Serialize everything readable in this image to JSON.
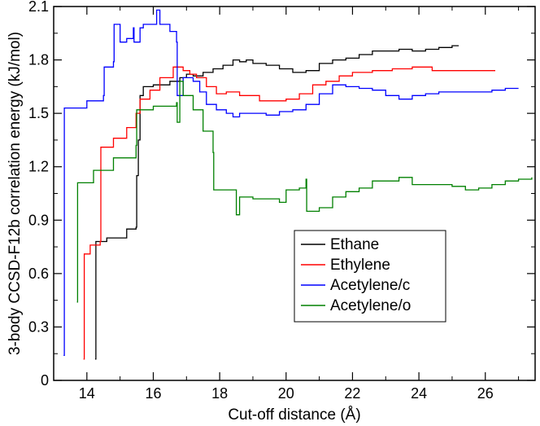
{
  "chart_data": {
    "type": "line",
    "title": "",
    "xlabel": "Cut-off distance (Å)",
    "ylabel": "3-body CCSD-F12b correlation energy (kJ/mol)",
    "xlim": [
      13,
      27.5
    ],
    "ylim": [
      0,
      2.1
    ],
    "x_major_ticks": [
      14,
      16,
      18,
      20,
      22,
      24,
      26
    ],
    "x_tick_labels": [
      "14",
      "16",
      "18",
      "20",
      "22",
      "24",
      "26"
    ],
    "y_major_ticks": [
      0,
      0.3,
      0.6,
      0.9,
      1.2,
      1.5,
      1.8,
      2.1
    ],
    "y_tick_labels": [
      "0",
      "0.3",
      "0.6",
      "0.9",
      "1.2",
      "1.5",
      "1.8",
      "2.1"
    ],
    "grid": false,
    "legend_position": "lower-right",
    "series": [
      {
        "name": "Ethane",
        "color": "#000000",
        "points": [
          [
            14.25,
            0.12
          ],
          [
            14.27,
            0.78
          ],
          [
            14.4,
            0.78
          ],
          [
            14.6,
            0.8
          ],
          [
            15.2,
            0.85
          ],
          [
            15.48,
            0.86
          ],
          [
            15.5,
            1.15
          ],
          [
            15.55,
            1.35
          ],
          [
            15.6,
            1.6
          ],
          [
            15.65,
            1.6
          ],
          [
            15.7,
            1.65
          ],
          [
            16.0,
            1.66
          ],
          [
            16.5,
            1.68
          ],
          [
            16.8,
            1.7
          ],
          [
            17.0,
            1.72
          ],
          [
            17.2,
            1.71
          ],
          [
            17.5,
            1.73
          ],
          [
            17.8,
            1.75
          ],
          [
            18.1,
            1.77
          ],
          [
            18.4,
            1.8
          ],
          [
            18.6,
            1.79
          ],
          [
            18.8,
            1.8
          ],
          [
            19.0,
            1.78
          ],
          [
            19.4,
            1.77
          ],
          [
            19.8,
            1.75
          ],
          [
            20.2,
            1.73
          ],
          [
            20.6,
            1.74
          ],
          [
            20.8,
            1.74
          ],
          [
            21.0,
            1.78
          ],
          [
            21.4,
            1.8
          ],
          [
            21.8,
            1.81
          ],
          [
            22.2,
            1.83
          ],
          [
            22.6,
            1.85
          ],
          [
            23.0,
            1.85
          ],
          [
            23.4,
            1.86
          ],
          [
            23.8,
            1.85
          ],
          [
            24.2,
            1.86
          ],
          [
            24.6,
            1.87
          ],
          [
            25.0,
            1.88
          ],
          [
            25.2,
            1.88
          ]
        ]
      },
      {
        "name": "Ethylene",
        "color": "#ff0000",
        "points": [
          [
            13.9,
            0.12
          ],
          [
            13.92,
            0.71
          ],
          [
            14.1,
            0.76
          ],
          [
            14.4,
            0.78
          ],
          [
            14.42,
            1.31
          ],
          [
            14.8,
            1.36
          ],
          [
            15.2,
            1.42
          ],
          [
            15.48,
            1.5
          ],
          [
            15.6,
            1.58
          ],
          [
            15.9,
            1.63
          ],
          [
            16.2,
            1.7
          ],
          [
            16.6,
            1.76
          ],
          [
            16.9,
            1.74
          ],
          [
            17.1,
            1.72
          ],
          [
            17.3,
            1.7
          ],
          [
            17.6,
            1.65
          ],
          [
            17.9,
            1.61
          ],
          [
            18.2,
            1.62
          ],
          [
            18.6,
            1.6
          ],
          [
            19.0,
            1.6
          ],
          [
            19.2,
            1.57
          ],
          [
            19.6,
            1.57
          ],
          [
            20.0,
            1.58
          ],
          [
            20.4,
            1.61
          ],
          [
            20.8,
            1.66
          ],
          [
            21.2,
            1.68
          ],
          [
            21.6,
            1.71
          ],
          [
            22.0,
            1.73
          ],
          [
            22.6,
            1.74
          ],
          [
            23.2,
            1.75
          ],
          [
            23.8,
            1.76
          ],
          [
            24.4,
            1.74
          ],
          [
            25.0,
            1.74
          ],
          [
            25.6,
            1.74
          ],
          [
            26.0,
            1.74
          ],
          [
            26.3,
            1.74
          ]
        ]
      },
      {
        "name": "Acetylene/c",
        "color": "#0000ff",
        "points": [
          [
            13.3,
            0.14
          ],
          [
            13.32,
            1.53
          ],
          [
            14.0,
            1.57
          ],
          [
            14.5,
            1.6
          ],
          [
            14.52,
            1.76
          ],
          [
            14.8,
            1.79
          ],
          [
            14.82,
            2.0
          ],
          [
            15.0,
            1.9
          ],
          [
            15.2,
            1.92
          ],
          [
            15.4,
            1.98
          ],
          [
            15.42,
            1.9
          ],
          [
            15.6,
            1.98
          ],
          [
            15.7,
            2.0
          ],
          [
            16.1,
            2.08
          ],
          [
            16.2,
            2.0
          ],
          [
            16.5,
            1.96
          ],
          [
            16.7,
            1.9
          ],
          [
            16.72,
            1.6
          ],
          [
            16.9,
            1.7
          ],
          [
            17.2,
            1.68
          ],
          [
            17.4,
            1.62
          ],
          [
            17.6,
            1.55
          ],
          [
            17.9,
            1.52
          ],
          [
            18.2,
            1.5
          ],
          [
            18.4,
            1.48
          ],
          [
            18.6,
            1.5
          ],
          [
            19.0,
            1.5
          ],
          [
            19.4,
            1.49
          ],
          [
            19.8,
            1.51
          ],
          [
            20.2,
            1.52
          ],
          [
            20.6,
            1.55
          ],
          [
            21.0,
            1.61
          ],
          [
            21.4,
            1.66
          ],
          [
            21.8,
            1.65
          ],
          [
            22.2,
            1.64
          ],
          [
            22.6,
            1.63
          ],
          [
            23.0,
            1.6
          ],
          [
            23.4,
            1.58
          ],
          [
            23.8,
            1.6
          ],
          [
            24.2,
            1.61
          ],
          [
            24.6,
            1.62
          ],
          [
            25.0,
            1.62
          ],
          [
            25.6,
            1.62
          ],
          [
            26.2,
            1.63
          ],
          [
            26.6,
            1.64
          ],
          [
            27.0,
            1.64
          ]
        ]
      },
      {
        "name": "Acetylene/o",
        "color": "#008000",
        "points": [
          [
            13.7,
            0.44
          ],
          [
            13.72,
            1.11
          ],
          [
            14.2,
            1.18
          ],
          [
            14.8,
            1.25
          ],
          [
            15.48,
            1.32
          ],
          [
            15.5,
            1.52
          ],
          [
            16.0,
            1.54
          ],
          [
            16.7,
            1.56
          ],
          [
            16.72,
            1.45
          ],
          [
            16.8,
            1.68
          ],
          [
            16.9,
            1.6
          ],
          [
            17.2,
            1.52
          ],
          [
            17.5,
            1.4
          ],
          [
            17.8,
            1.28
          ],
          [
            17.82,
            1.07
          ],
          [
            18.2,
            1.07
          ],
          [
            18.5,
            0.93
          ],
          [
            18.6,
            1.03
          ],
          [
            19.0,
            1.02
          ],
          [
            19.8,
            1.0
          ],
          [
            20.0,
            1.07
          ],
          [
            20.4,
            1.08
          ],
          [
            20.6,
            1.13
          ],
          [
            20.62,
            0.95
          ],
          [
            21.0,
            0.97
          ],
          [
            21.4,
            1.03
          ],
          [
            21.8,
            1.06
          ],
          [
            22.2,
            1.08
          ],
          [
            22.6,
            1.12
          ],
          [
            23.0,
            1.12
          ],
          [
            23.4,
            1.14
          ],
          [
            23.8,
            1.1
          ],
          [
            24.2,
            1.1
          ],
          [
            24.6,
            1.1
          ],
          [
            25.0,
            1.09
          ],
          [
            25.4,
            1.07
          ],
          [
            25.8,
            1.08
          ],
          [
            26.2,
            1.1
          ],
          [
            26.6,
            1.12
          ],
          [
            27.0,
            1.13
          ],
          [
            27.4,
            1.14
          ]
        ]
      }
    ]
  }
}
